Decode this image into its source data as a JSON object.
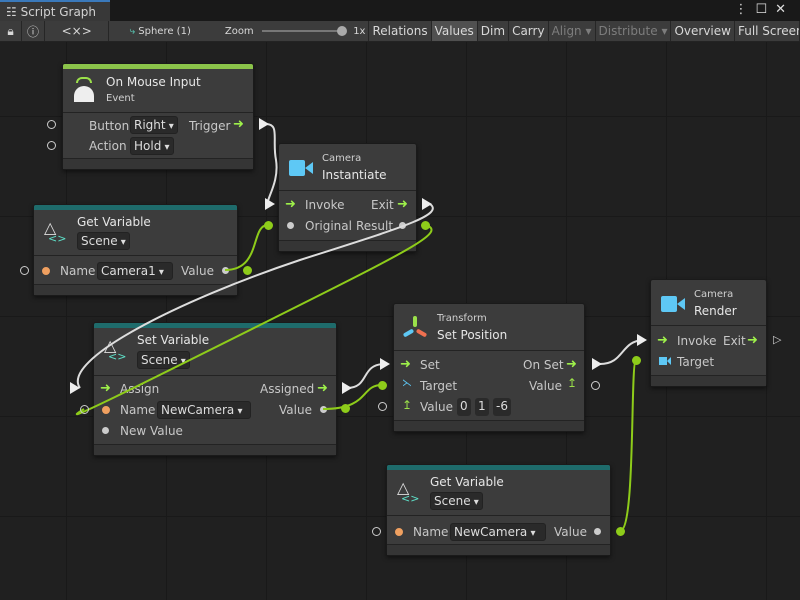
{
  "window": {
    "tab_title": "Script Graph",
    "menu_icon": "kebab-icon",
    "maximize_icon": "maximize-icon",
    "close_icon": "close-icon"
  },
  "toolbar": {
    "lock_icon": "lock-icon",
    "info_icon": "info-icon",
    "embed_label": "<×>",
    "target_label": "Sphere (1)",
    "zoom_label": "Zoom",
    "zoom_value": "1x",
    "zoom_level": 1.0,
    "buttons": [
      {
        "label": "Relations"
      },
      {
        "label": "Values",
        "active": true
      },
      {
        "label": "Dim"
      },
      {
        "label": "Carry"
      },
      {
        "label": "Align",
        "disabled": true
      },
      {
        "label": "Distribute",
        "disabled": true
      },
      {
        "label": "Overview"
      },
      {
        "label": "Full Screen"
      }
    ]
  },
  "colors": {
    "event": "#8bc34a",
    "variable": "#1e6b6b",
    "flow": "#9ef04a",
    "value_wire": "#8ecc1a",
    "camera": "#5ec8f5"
  },
  "nodes": {
    "mouse": {
      "title": "On Mouse Input",
      "subtitle": "Event",
      "button_label": "Button",
      "button_value": "Right",
      "trigger_label": "Trigger",
      "action_label": "Action",
      "action_value": "Hold"
    },
    "instantiate": {
      "category": "Camera",
      "title": "Instantiate",
      "invoke": "Invoke",
      "exit": "Exit",
      "original": "Original",
      "result": "Result"
    },
    "getvar1": {
      "title": "Get Variable",
      "scope": "Scene",
      "name_label": "Name",
      "name_value": "Camera1",
      "value_label": "Value"
    },
    "setvar": {
      "title": "Set Variable",
      "scope": "Scene",
      "assign": "Assign",
      "assigned": "Assigned",
      "name_label": "Name",
      "name_value": "NewCamera",
      "value_label": "Value",
      "new_value": "New Value"
    },
    "setpos": {
      "category": "Transform",
      "title": "Set Position",
      "set": "Set",
      "on_set": "On Set",
      "target": "Target",
      "value_out": "Value",
      "value_in": "Value",
      "x": "0",
      "y": "1",
      "z": "-6"
    },
    "render": {
      "category": "Camera",
      "title": "Render",
      "invoke": "Invoke",
      "exit": "Exit",
      "target": "Target"
    },
    "getvar2": {
      "title": "Get Variable",
      "scope": "Scene",
      "name_label": "Name",
      "name_value": "NewCamera",
      "value_label": "Value"
    }
  }
}
